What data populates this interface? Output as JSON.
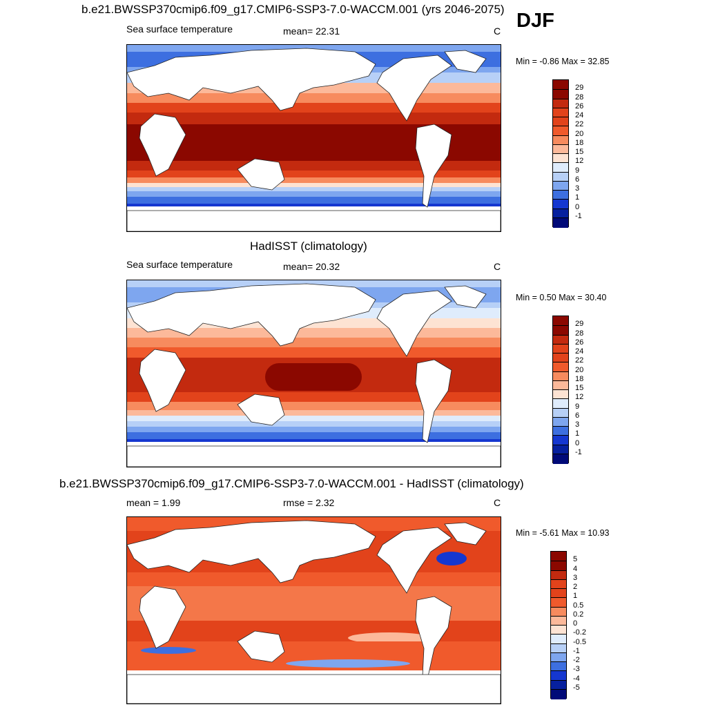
{
  "season": "DJF",
  "colors": {
    "warm_1": "#fde3d3",
    "warm_2": "#fcb99a",
    "warm_3": "#f78b5e",
    "warm_4": "#f05a2c",
    "warm_5": "#e2431b",
    "warm_6": "#c32a0f",
    "warm_7": "#8b0800",
    "cool_1": "#dfecfc",
    "cool_2": "#b7d0f7",
    "cool_3": "#7ea6ef",
    "cool_4": "#3d6fe0",
    "cool_5": "#1537d0",
    "cool_6": "#06209e",
    "cool_7": "#000a78",
    "land": "#ffffff"
  },
  "chart_data": [
    {
      "type": "heatmap",
      "title": "b.e21.BWSSP370cmip6.f09_g17.CMIP6-SSP3-7.0-WACCM.001 (yrs 2046-2075)",
      "left_label": "Sea surface temperature",
      "center_label": "mean=  22.31",
      "units": "C",
      "minmax": "Min =  -0.86 Max =  32.85",
      "stats": {
        "mean": 22.31,
        "min": -0.86,
        "max": 32.85
      },
      "colorbar_levels": [
        "29",
        "28",
        "26",
        "24",
        "22",
        "20",
        "18",
        "15",
        "12",
        "9",
        "6",
        "3",
        "1",
        "0",
        "-1"
      ]
    },
    {
      "type": "heatmap",
      "title": "HadISST (climatology)",
      "left_label": "Sea surface temperature",
      "center_label": "mean=  20.32",
      "units": "C",
      "minmax": "Min =   0.50 Max =  30.40",
      "stats": {
        "mean": 20.32,
        "min": 0.5,
        "max": 30.4
      },
      "colorbar_levels": [
        "29",
        "28",
        "26",
        "24",
        "22",
        "20",
        "18",
        "15",
        "12",
        "9",
        "6",
        "3",
        "1",
        "0",
        "-1"
      ]
    },
    {
      "type": "heatmap",
      "title": "b.e21.BWSSP370cmip6.f09_g17.CMIP6-SSP3-7.0-WACCM.001 - HadISST (climatology)",
      "left_label": "mean =   1.99",
      "center_label": "rmse =   2.32",
      "units": "C",
      "minmax": "Min =  -5.61 Max =  10.93",
      "stats": {
        "mean": 1.99,
        "rmse": 2.32,
        "min": -5.61,
        "max": 10.93
      },
      "colorbar_levels": [
        "5",
        "4",
        "3",
        "2",
        "1",
        "0.5",
        "0.2",
        "0",
        "-0.2",
        "-0.5",
        "-1",
        "-2",
        "-3",
        "-4",
        "-5"
      ]
    }
  ]
}
